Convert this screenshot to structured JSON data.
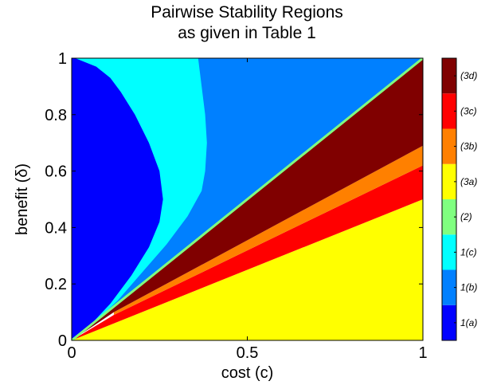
{
  "chart_data": {
    "type": "heatmap",
    "title": [
      "Pairwise Stability Regions",
      "as given in Table 1"
    ],
    "xlabel": "cost (c)",
    "ylabel": "benefit (δ)",
    "xlim": [
      0,
      1
    ],
    "ylim": [
      0,
      1
    ],
    "x_ticks": [
      0,
      0.5,
      1
    ],
    "x_tick_labels": [
      "0",
      "0.5",
      "1"
    ],
    "y_ticks": [
      0,
      0.2,
      0.4,
      0.6,
      0.8,
      1
    ],
    "y_tick_labels": [
      "0",
      "0.2",
      "0.4",
      "0.6",
      "0.8",
      "1"
    ],
    "grid": false,
    "legend": "colorbar-right",
    "regions": [
      {
        "label": "1(a)",
        "color": "#0000ff"
      },
      {
        "label": "1(b)",
        "color": "#0080ff"
      },
      {
        "label": "1(c)",
        "color": "#00ffff"
      },
      {
        "label": "(2)",
        "color": "#80ff80"
      },
      {
        "label": "(3a)",
        "color": "#ffff00"
      },
      {
        "label": "(3b)",
        "color": "#ff8000"
      },
      {
        "label": "(3c)",
        "color": "#ff0000"
      },
      {
        "label": "(3d)",
        "color": "#800000"
      }
    ],
    "region_boundaries": {
      "line_2_delta_equals_c": {
        "from": [
          0,
          0
        ],
        "to": [
          1,
          1
        ]
      },
      "upper_3d_3b": {
        "from": [
          0.12,
          0.1
        ],
        "to": [
          1,
          0.69
        ]
      },
      "upper_3b_3c": {
        "from": [
          0.12,
          0.09
        ],
        "to": [
          1,
          0.62
        ]
      },
      "upper_3c_3a": {
        "from": [
          0,
          0
        ],
        "to": [
          1,
          0.5
        ]
      },
      "blue_1a_1c": [
        [
          0.01,
          1.0
        ],
        [
          0.07,
          0.97
        ],
        [
          0.11,
          0.93
        ],
        [
          0.14,
          0.88
        ],
        [
          0.18,
          0.8
        ],
        [
          0.22,
          0.7
        ],
        [
          0.25,
          0.6
        ],
        [
          0.26,
          0.5
        ],
        [
          0.25,
          0.42
        ],
        [
          0.22,
          0.33
        ],
        [
          0.17,
          0.23
        ],
        [
          0.11,
          0.13
        ],
        [
          0.05,
          0.05
        ],
        [
          0.01,
          0.01
        ]
      ],
      "blue_1c_1b": [
        [
          0.36,
          1.0
        ],
        [
          0.37,
          0.9
        ],
        [
          0.38,
          0.8
        ],
        [
          0.385,
          0.7
        ],
        [
          0.38,
          0.6
        ],
        [
          0.37,
          0.53
        ],
        [
          0.33,
          0.44
        ],
        [
          0.27,
          0.34
        ],
        [
          0.2,
          0.24
        ],
        [
          0.13,
          0.14
        ],
        [
          0.07,
          0.07
        ],
        [
          0.01,
          0.01
        ]
      ]
    }
  }
}
